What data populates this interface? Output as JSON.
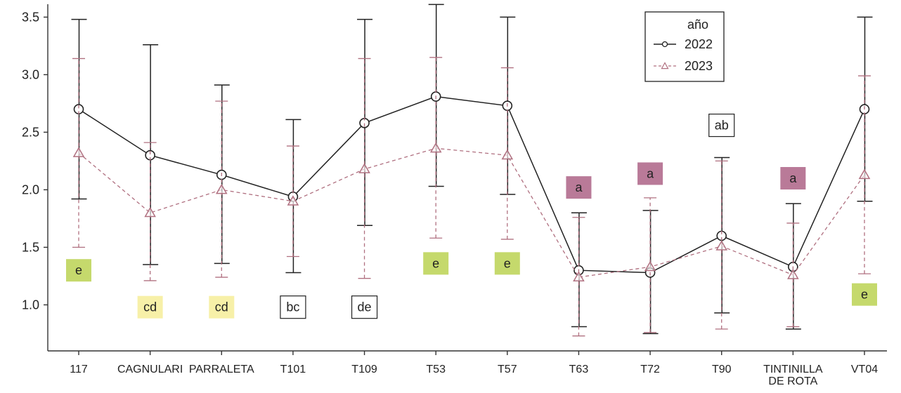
{
  "chart_data": {
    "type": "line",
    "categories": [
      "117",
      "CAGNULARI",
      "PARRALETA",
      "T101",
      "T109",
      "T53",
      "T57",
      "T63",
      "T72",
      "T90",
      "TINTINILLA DE ROTA",
      "VT04"
    ],
    "ylim": [
      0.6,
      3.6
    ],
    "yticks": [
      1.0,
      1.5,
      2.0,
      2.5,
      3.0,
      3.5
    ],
    "ytick_labels": [
      "1.0",
      "1.5",
      "2.0",
      "2.5",
      "3.0",
      "3.5"
    ],
    "series": [
      {
        "name": "2022",
        "color": "#222222",
        "marker": "circle",
        "line_style": "solid",
        "values": [
          2.7,
          2.3,
          2.13,
          1.94,
          2.58,
          2.81,
          2.73,
          1.3,
          1.28,
          1.6,
          1.33,
          2.7
        ],
        "err_low": [
          1.92,
          1.35,
          1.36,
          1.28,
          1.69,
          2.03,
          1.96,
          0.81,
          0.75,
          0.93,
          0.79,
          1.9
        ],
        "err_high": [
          3.48,
          3.26,
          2.91,
          2.61,
          3.48,
          3.61,
          3.5,
          1.8,
          1.82,
          2.28,
          1.88,
          3.5
        ]
      },
      {
        "name": "2023",
        "color": "#b07080",
        "marker": "triangle",
        "line_style": "dashed",
        "values": [
          2.32,
          1.8,
          2.0,
          1.9,
          2.18,
          2.36,
          2.3,
          1.24,
          1.33,
          1.51,
          1.26,
          2.13
        ],
        "err_low": [
          1.5,
          1.21,
          1.24,
          1.42,
          1.23,
          1.58,
          1.57,
          0.73,
          0.76,
          0.79,
          0.81,
          1.27
        ],
        "err_high": [
          3.14,
          2.41,
          2.77,
          2.38,
          3.14,
          3.15,
          3.06,
          1.76,
          1.93,
          2.25,
          1.71,
          2.99
        ]
      }
    ],
    "legend": {
      "title": "año",
      "position": "top-right"
    },
    "annotations": [
      {
        "category": "117",
        "text": "e",
        "y": 1.3,
        "color": "#c5d96c",
        "border": "none"
      },
      {
        "category": "CAGNULARI",
        "text": "cd",
        "y": 0.98,
        "color": "#f7f0a8",
        "border": "none"
      },
      {
        "category": "PARRALETA",
        "text": "cd",
        "y": 0.98,
        "color": "#f7f0a8",
        "border": "none"
      },
      {
        "category": "T101",
        "text": "bc",
        "y": 0.98,
        "color": "#ffffff",
        "border": "#222222"
      },
      {
        "category": "T109",
        "text": "de",
        "y": 0.98,
        "color": "#ffffff",
        "border": "#222222"
      },
      {
        "category": "T53",
        "text": "e",
        "y": 1.36,
        "color": "#c5d96c",
        "border": "none"
      },
      {
        "category": "T57",
        "text": "e",
        "y": 1.36,
        "color": "#c5d96c",
        "border": "none"
      },
      {
        "category": "T63",
        "text": "a",
        "y": 2.02,
        "color": "#b97a98",
        "border": "none"
      },
      {
        "category": "T72",
        "text": "a",
        "y": 2.14,
        "color": "#b97a98",
        "border": "none"
      },
      {
        "category": "T90",
        "text": "ab",
        "y": 2.56,
        "color": "#ffffff",
        "border": "#222222"
      },
      {
        "category": "TINTINILLA DE ROTA",
        "text": "a",
        "y": 2.1,
        "color": "#b97a98",
        "border": "none"
      },
      {
        "category": "VT04",
        "text": "e",
        "y": 1.09,
        "color": "#c5d96c",
        "border": "none"
      }
    ]
  }
}
